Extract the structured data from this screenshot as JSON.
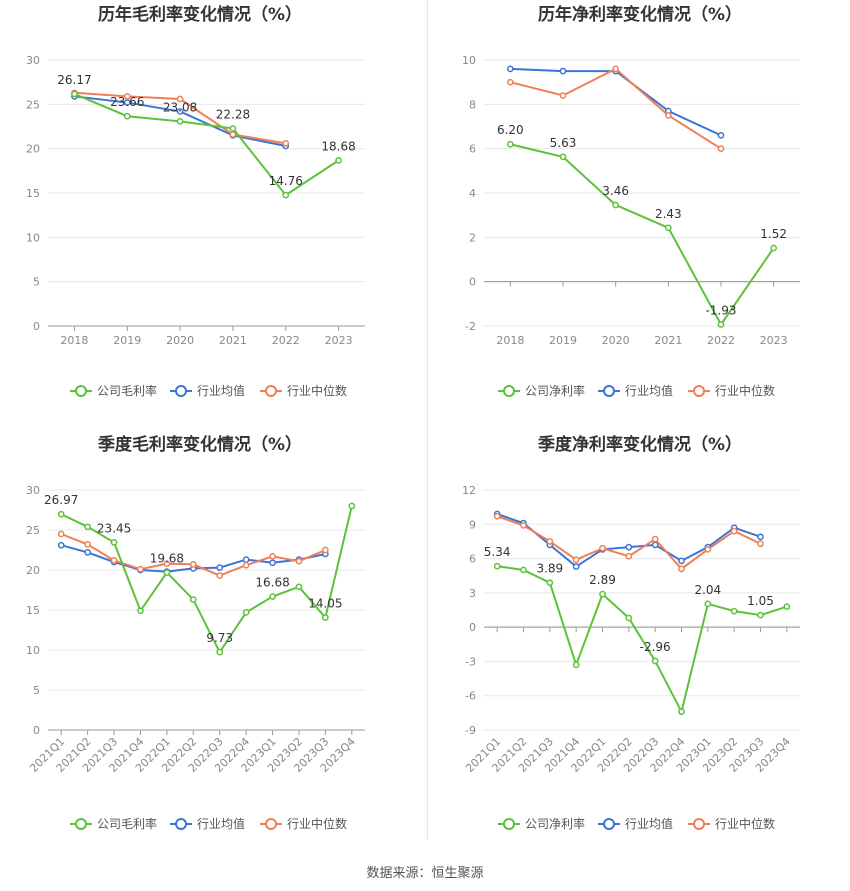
{
  "footer": {
    "source": "数据来源：恒生聚源"
  },
  "colors": {
    "company": "#5cc23a",
    "industry_avg": "#3b74d6",
    "industry_median": "#f07f56"
  },
  "chart_data": [
    {
      "id": "annual-gross",
      "type": "line",
      "title": "历年毛利率变化情况（%）",
      "categories": [
        "2018",
        "2019",
        "2020",
        "2021",
        "2022",
        "2023"
      ],
      "ylim": [
        0,
        30
      ],
      "yticks": [
        0,
        5,
        10,
        15,
        20,
        25,
        30
      ],
      "grid": true,
      "legend_position": "bottom",
      "series": [
        {
          "name": "公司毛利率",
          "color": "#5cc23a",
          "values": [
            26.17,
            23.66,
            23.08,
            22.28,
            14.76,
            18.68
          ]
        },
        {
          "name": "行业均值",
          "color": "#3b74d6",
          "values": [
            25.9,
            25.2,
            24.2,
            21.5,
            20.3,
            null
          ]
        },
        {
          "name": "行业中位数",
          "color": "#f07f56",
          "values": [
            26.3,
            25.9,
            25.6,
            21.6,
            20.6,
            null
          ]
        }
      ],
      "data_labels": [
        {
          "index": 0,
          "text": "26.17"
        },
        {
          "index": 1,
          "text": "23.66"
        },
        {
          "index": 2,
          "text": "23.08"
        },
        {
          "index": 3,
          "text": "22.28"
        },
        {
          "index": 4,
          "text": "14.76"
        },
        {
          "index": 5,
          "text": "18.68"
        }
      ]
    },
    {
      "id": "annual-net",
      "type": "line",
      "title": "历年净利率变化情况（%）",
      "categories": [
        "2018",
        "2019",
        "2020",
        "2021",
        "2022",
        "2023"
      ],
      "ylim": [
        -2,
        10
      ],
      "yticks": [
        -2,
        0,
        2,
        4,
        6,
        8,
        10
      ],
      "grid": true,
      "legend_position": "bottom",
      "series": [
        {
          "name": "公司净利率",
          "color": "#5cc23a",
          "values": [
            6.2,
            5.63,
            3.46,
            2.43,
            -1.93,
            1.52
          ]
        },
        {
          "name": "行业均值",
          "color": "#3b74d6",
          "values": [
            9.6,
            9.5,
            9.5,
            7.7,
            6.6,
            null
          ]
        },
        {
          "name": "行业中位数",
          "color": "#f07f56",
          "values": [
            9.0,
            8.4,
            9.6,
            7.5,
            6.0,
            null
          ]
        }
      ],
      "data_labels": [
        {
          "index": 0,
          "text": "6.20"
        },
        {
          "index": 1,
          "text": "5.63"
        },
        {
          "index": 2,
          "text": "3.46"
        },
        {
          "index": 3,
          "text": "2.43"
        },
        {
          "index": 4,
          "text": "-1.93"
        },
        {
          "index": 5,
          "text": "1.52"
        }
      ]
    },
    {
      "id": "quarterly-gross",
      "type": "line",
      "title": "季度毛利率变化情况（%）",
      "categories": [
        "2021Q1",
        "2021Q2",
        "2021Q3",
        "2021Q4",
        "2022Q1",
        "2022Q2",
        "2022Q3",
        "2022Q4",
        "2023Q1",
        "2023Q2",
        "2023Q3",
        "2023Q4"
      ],
      "ylim": [
        0,
        30
      ],
      "yticks": [
        0,
        5,
        10,
        15,
        20,
        25,
        30
      ],
      "grid": true,
      "legend_position": "bottom",
      "series": [
        {
          "name": "公司毛利率",
          "color": "#5cc23a",
          "values": [
            26.97,
            25.4,
            23.45,
            14.9,
            19.68,
            16.3,
            9.73,
            14.7,
            16.68,
            17.9,
            14.05,
            28.0
          ]
        },
        {
          "name": "行业均值",
          "color": "#3b74d6",
          "values": [
            23.1,
            22.2,
            21.0,
            20.0,
            19.8,
            20.2,
            20.3,
            21.3,
            20.9,
            21.3,
            22.0,
            null
          ]
        },
        {
          "name": "行业中位数",
          "color": "#f07f56",
          "values": [
            24.5,
            23.2,
            21.2,
            20.1,
            20.8,
            20.7,
            19.3,
            20.6,
            21.7,
            21.1,
            22.5,
            null
          ]
        }
      ],
      "data_labels": [
        {
          "index": 0,
          "text": "26.97"
        },
        {
          "index": 2,
          "text": "23.45"
        },
        {
          "index": 4,
          "text": "19.68"
        },
        {
          "index": 6,
          "text": "9.73"
        },
        {
          "index": 8,
          "text": "16.68"
        },
        {
          "index": 10,
          "text": "14.05"
        }
      ]
    },
    {
      "id": "quarterly-net",
      "type": "line",
      "title": "季度净利率变化情况（%）",
      "categories": [
        "2021Q1",
        "2021Q2",
        "2021Q3",
        "2021Q4",
        "2022Q1",
        "2022Q2",
        "2022Q3",
        "2022Q4",
        "2023Q1",
        "2023Q2",
        "2023Q3",
        "2023Q4"
      ],
      "ylim": [
        -9,
        12
      ],
      "yticks": [
        -9,
        -6,
        -3,
        0,
        3,
        6,
        9,
        12
      ],
      "grid": true,
      "legend_position": "bottom",
      "series": [
        {
          "name": "公司净利率",
          "color": "#5cc23a",
          "values": [
            5.34,
            5.0,
            3.89,
            -3.3,
            2.89,
            0.8,
            -2.96,
            -7.4,
            2.04,
            1.4,
            1.05,
            1.8
          ]
        },
        {
          "name": "行业均值",
          "color": "#3b74d6",
          "values": [
            9.9,
            9.1,
            7.2,
            5.3,
            6.8,
            7.0,
            7.2,
            5.8,
            7.0,
            8.7,
            7.9,
            null
          ]
        },
        {
          "name": "行业中位数",
          "color": "#f07f56",
          "values": [
            9.7,
            8.9,
            7.5,
            5.9,
            6.9,
            6.2,
            7.7,
            5.1,
            6.8,
            8.4,
            7.3,
            null
          ]
        }
      ],
      "data_labels": [
        {
          "index": 0,
          "text": "5.34"
        },
        {
          "index": 2,
          "text": "3.89"
        },
        {
          "index": 4,
          "text": "2.89"
        },
        {
          "index": 6,
          "text": "-2.96"
        },
        {
          "index": 8,
          "text": "2.04"
        },
        {
          "index": 10,
          "text": "1.05"
        }
      ]
    }
  ]
}
